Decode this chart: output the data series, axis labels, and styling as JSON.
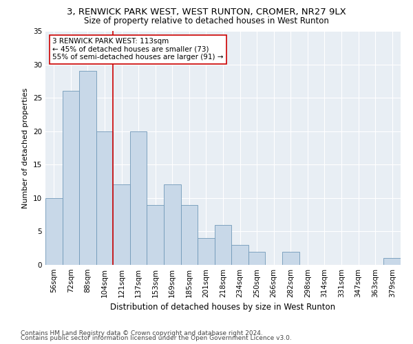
{
  "title1": "3, RENWICK PARK WEST, WEST RUNTON, CROMER, NR27 9LX",
  "title2": "Size of property relative to detached houses in West Runton",
  "xlabel": "Distribution of detached houses by size in West Runton",
  "ylabel": "Number of detached properties",
  "categories": [
    "56sqm",
    "72sqm",
    "88sqm",
    "104sqm",
    "121sqm",
    "137sqm",
    "153sqm",
    "169sqm",
    "185sqm",
    "201sqm",
    "218sqm",
    "234sqm",
    "250sqm",
    "266sqm",
    "282sqm",
    "298sqm",
    "314sqm",
    "331sqm",
    "347sqm",
    "363sqm",
    "379sqm"
  ],
  "values": [
    10,
    26,
    29,
    20,
    12,
    20,
    9,
    12,
    9,
    4,
    6,
    3,
    2,
    0,
    2,
    0,
    0,
    0,
    0,
    0,
    1
  ],
  "bar_color": "#c8d8e8",
  "bar_edge_color": "#7098b8",
  "red_line_x": 3.5,
  "annotation_text": "3 RENWICK PARK WEST: 113sqm\n← 45% of detached houses are smaller (73)\n55% of semi-detached houses are larger (91) →",
  "annotation_box_color": "white",
  "annotation_box_edge": "#cc0000",
  "red_line_color": "#cc0000",
  "ylim": [
    0,
    35
  ],
  "yticks": [
    0,
    5,
    10,
    15,
    20,
    25,
    30,
    35
  ],
  "footer1": "Contains HM Land Registry data © Crown copyright and database right 2024.",
  "footer2": "Contains public sector information licensed under the Open Government Licence v3.0.",
  "background_color": "#e8eef4",
  "grid_color": "white",
  "title1_fontsize": 9.5,
  "title2_fontsize": 8.5,
  "xlabel_fontsize": 8.5,
  "ylabel_fontsize": 8,
  "tick_fontsize": 7.5,
  "annotation_fontsize": 7.5,
  "footer_fontsize": 6.5
}
